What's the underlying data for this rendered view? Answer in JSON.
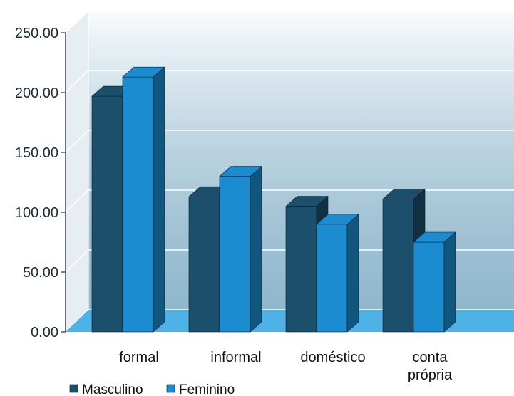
{
  "chart_data": {
    "type": "bar",
    "categories": [
      "formal",
      "informal",
      "doméstico",
      "conta própria"
    ],
    "category_label_lines": [
      [
        "formal"
      ],
      [
        "informal"
      ],
      [
        "doméstico"
      ],
      [
        "conta",
        "própria"
      ]
    ],
    "series": [
      {
        "name": "Masculino",
        "values": [
          197,
          113,
          105,
          111
        ],
        "color": "#1c4f6b"
      },
      {
        "name": "Feminino",
        "values": [
          213,
          130,
          90,
          75
        ],
        "color": "#1a8ccf"
      }
    ],
    "yticks": [
      "0.00",
      "50.00",
      "100.00",
      "150.00",
      "200.00",
      "250.00"
    ],
    "ylim": [
      0,
      250
    ],
    "grid": true,
    "legend_position": "bottom-left",
    "colors": {
      "wall": "#b8cfdc",
      "floor": "#4fb2e6",
      "grid": "#ffffff"
    }
  }
}
